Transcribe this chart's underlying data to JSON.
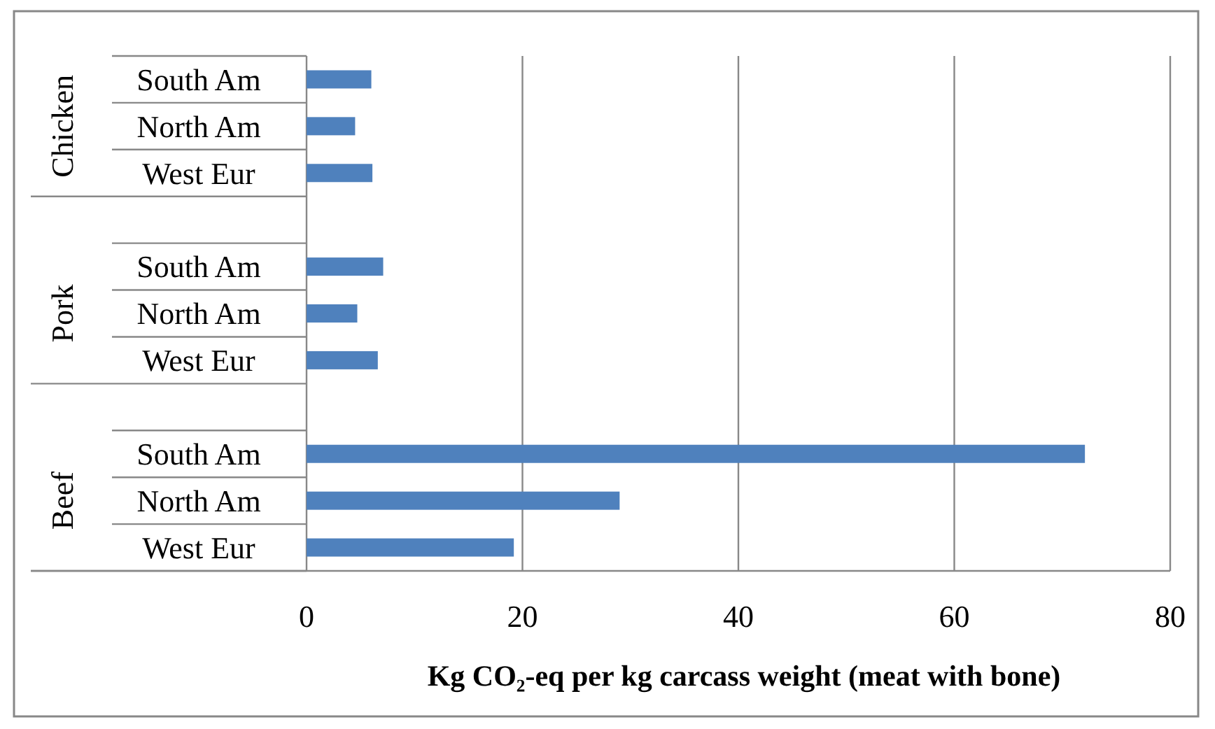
{
  "chart_data": {
    "type": "bar",
    "orientation": "horizontal",
    "categories": [
      "South Am",
      "North Am",
      "West Eur",
      null,
      "South Am",
      "North Am",
      "West Eur",
      null,
      "South Am",
      "North Am",
      "West Eur"
    ],
    "values": [
      6.0,
      4.5,
      6.1,
      null,
      7.1,
      4.7,
      6.6,
      null,
      72.1,
      29,
      19.2
    ],
    "color": "#4f81bd",
    "xlim": [
      0,
      80
    ],
    "xticks": [
      0,
      20,
      40,
      60,
      80
    ],
    "grid": "x",
    "legend": false,
    "xlabel": "Kg CO₂-eq per kg carcass weight (meat with bone)",
    "annotations": [
      "Chicken",
      "Pork",
      "Beef"
    ]
  }
}
